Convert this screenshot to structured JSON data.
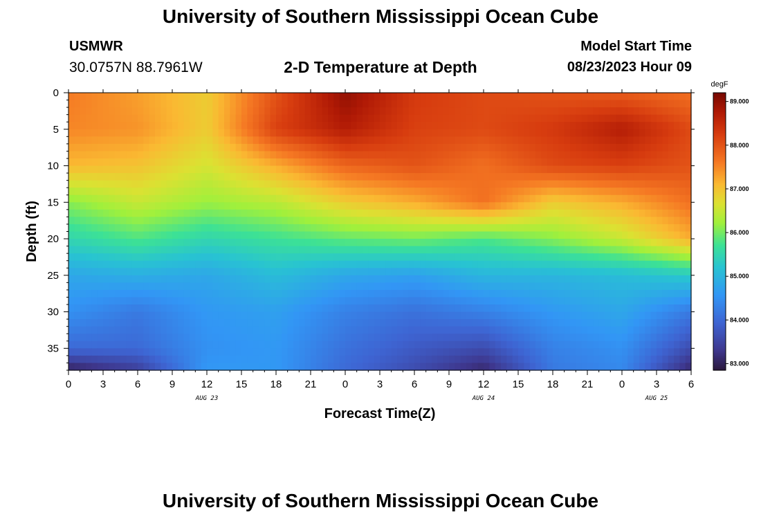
{
  "page": {
    "title": "University of Southern Mississippi Ocean Cube",
    "station": "USMWR",
    "coords": "30.0757N  88.7961W",
    "subtitle": "2-D Temperature at Depth",
    "model_start_label": "Model Start Time",
    "model_start_value": "08/23/2023 Hour 09",
    "footer_title": "University of Southern Mississippi Ocean Cube"
  },
  "chart_data": {
    "type": "heatmap",
    "title": "2-D Temperature at Depth",
    "xlabel": "Forecast Time(Z)",
    "ylabel": "Depth (ft)",
    "x_ticks": [
      "0",
      "3",
      "6",
      "9",
      "12",
      "15",
      "18",
      "21",
      "0",
      "3",
      "6",
      "9",
      "12",
      "15",
      "18",
      "21",
      "0",
      "3",
      "6"
    ],
    "x_range_hours": [
      0,
      54
    ],
    "date_labels": [
      {
        "text": "AUG 23",
        "hour": 12
      },
      {
        "text": "AUG 24",
        "hour": 36
      },
      {
        "text": "AUG 25",
        "hour": 51
      }
    ],
    "y_ticks": [
      0,
      5,
      10,
      15,
      20,
      25,
      30,
      35
    ],
    "y_range": [
      0,
      38
    ],
    "colorbar": {
      "unit": "degF",
      "ticks": [
        "89.000",
        "88.000",
        "87.000",
        "86.000",
        "85.000",
        "84.000",
        "83.000"
      ],
      "range": [
        82.85,
        89.2
      ]
    },
    "x_hours": [
      0,
      6,
      12,
      18,
      24,
      30,
      36,
      42,
      48,
      54
    ],
    "depths": [
      0,
      5,
      10,
      15,
      20,
      25,
      30,
      35,
      38
    ],
    "values": [
      [
        87.6,
        87.3,
        86.9,
        88.0,
        89.0,
        88.3,
        88.1,
        88.0,
        87.9,
        87.7
      ],
      [
        87.5,
        87.4,
        86.9,
        88.2,
        88.7,
        88.2,
        88.1,
        88.3,
        88.7,
        88.1
      ],
      [
        87.1,
        87.0,
        86.6,
        87.2,
        87.8,
        88.0,
        87.7,
        88.1,
        88.2,
        88.0
      ],
      [
        86.1,
        86.5,
        86.2,
        86.4,
        86.9,
        87.2,
        87.7,
        86.9,
        87.2,
        87.7
      ],
      [
        85.5,
        85.8,
        85.5,
        85.7,
        85.9,
        86.0,
        85.8,
        86.1,
        86.5,
        87.2
      ],
      [
        84.8,
        84.9,
        84.8,
        85.1,
        84.8,
        84.7,
        85.0,
        85.0,
        85.1,
        85.3
      ],
      [
        84.5,
        84.2,
        84.6,
        84.7,
        84.3,
        84.1,
        84.3,
        84.6,
        84.8,
        84.2
      ],
      [
        84.0,
        84.0,
        84.5,
        84.6,
        84.1,
        83.8,
        83.6,
        84.3,
        84.5,
        83.6
      ],
      [
        83.0,
        83.4,
        84.6,
        84.6,
        84.0,
        83.6,
        83.1,
        84.2,
        84.4,
        83.1
      ]
    ]
  }
}
